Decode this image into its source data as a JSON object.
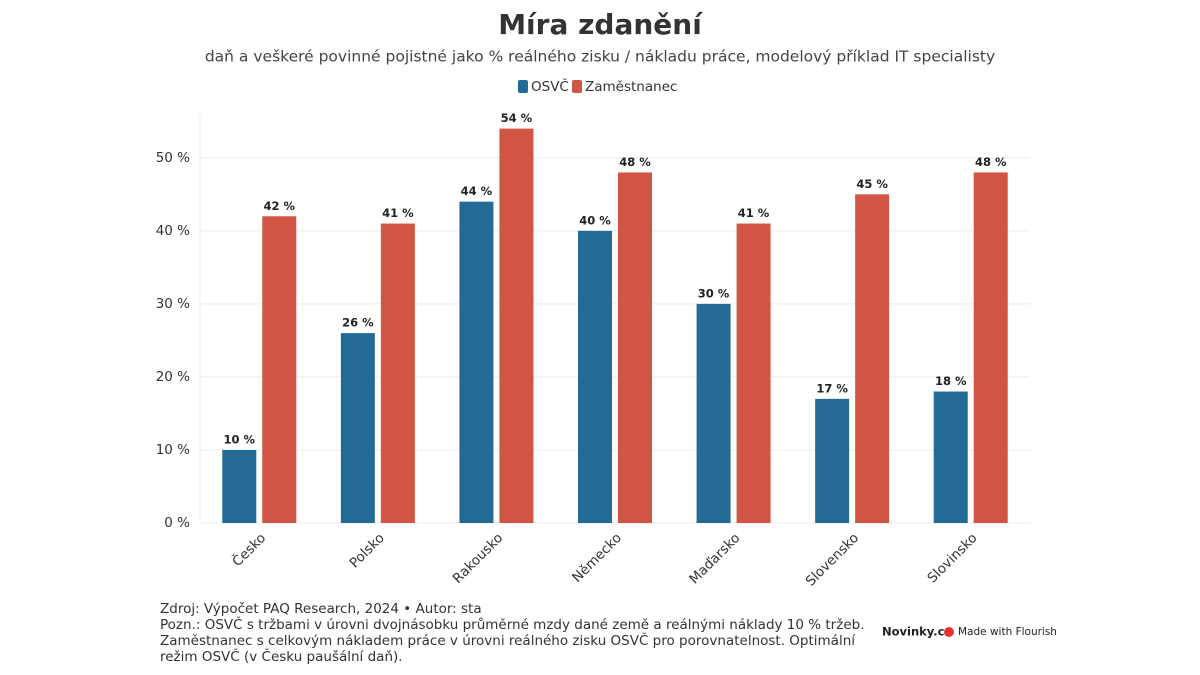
{
  "chart_data": {
    "type": "bar",
    "title": "Míra zdanění",
    "subtitle": "daň a veškeré povinné pojistné jako % reálného zisku / nákladu práce, modelový příklad IT specialisty",
    "categories": [
      "Česko",
      "Polsko",
      "Rakousko",
      "Německo",
      "Maďarsko",
      "Slovensko",
      "Slovinsko"
    ],
    "series": [
      {
        "name": "OSVČ",
        "color": "#236a94",
        "values": [
          10,
          26,
          44,
          40,
          30,
          17,
          18
        ],
        "value_labels": [
          "10 %",
          "26 %",
          "44 %",
          "40 %",
          "30 %",
          "17 %",
          "18 %"
        ]
      },
      {
        "name": "Zaměstnanec",
        "color": "#d05545",
        "values": [
          42,
          41,
          54,
          48,
          41,
          45,
          48
        ],
        "value_labels": [
          "42 %",
          "41 %",
          "54 %",
          "48 %",
          "41 %",
          "45 %",
          "48 %"
        ]
      }
    ],
    "ylim": [
      0,
      56
    ],
    "yticks": [
      {
        "value": 0,
        "label": "0 %"
      },
      {
        "value": 10,
        "label": "10 %"
      },
      {
        "value": 20,
        "label": "20 %"
      },
      {
        "value": 30,
        "label": "30 %"
      },
      {
        "value": 40,
        "label": "40 %"
      },
      {
        "value": 50,
        "label": "50 %"
      }
    ],
    "grid": true,
    "legend": "top",
    "source": "Zdroj: Výpočet PAQ Research, 2024 • Autor: sta",
    "note": "Pozn.: OSVČ s tržbami v úrovni dvojnásobku průměrné mzdy dané země a reálnými náklady 10 % tržeb. Zaměstnanec s celkovým nákladem práce v úrovni reálného zisku OSVČ pro porovnatelnost. Optimální režim OSVČ (v Česku paušální daň).",
    "publisher": "Novinky.cz",
    "credit": "Made with Flourish"
  }
}
